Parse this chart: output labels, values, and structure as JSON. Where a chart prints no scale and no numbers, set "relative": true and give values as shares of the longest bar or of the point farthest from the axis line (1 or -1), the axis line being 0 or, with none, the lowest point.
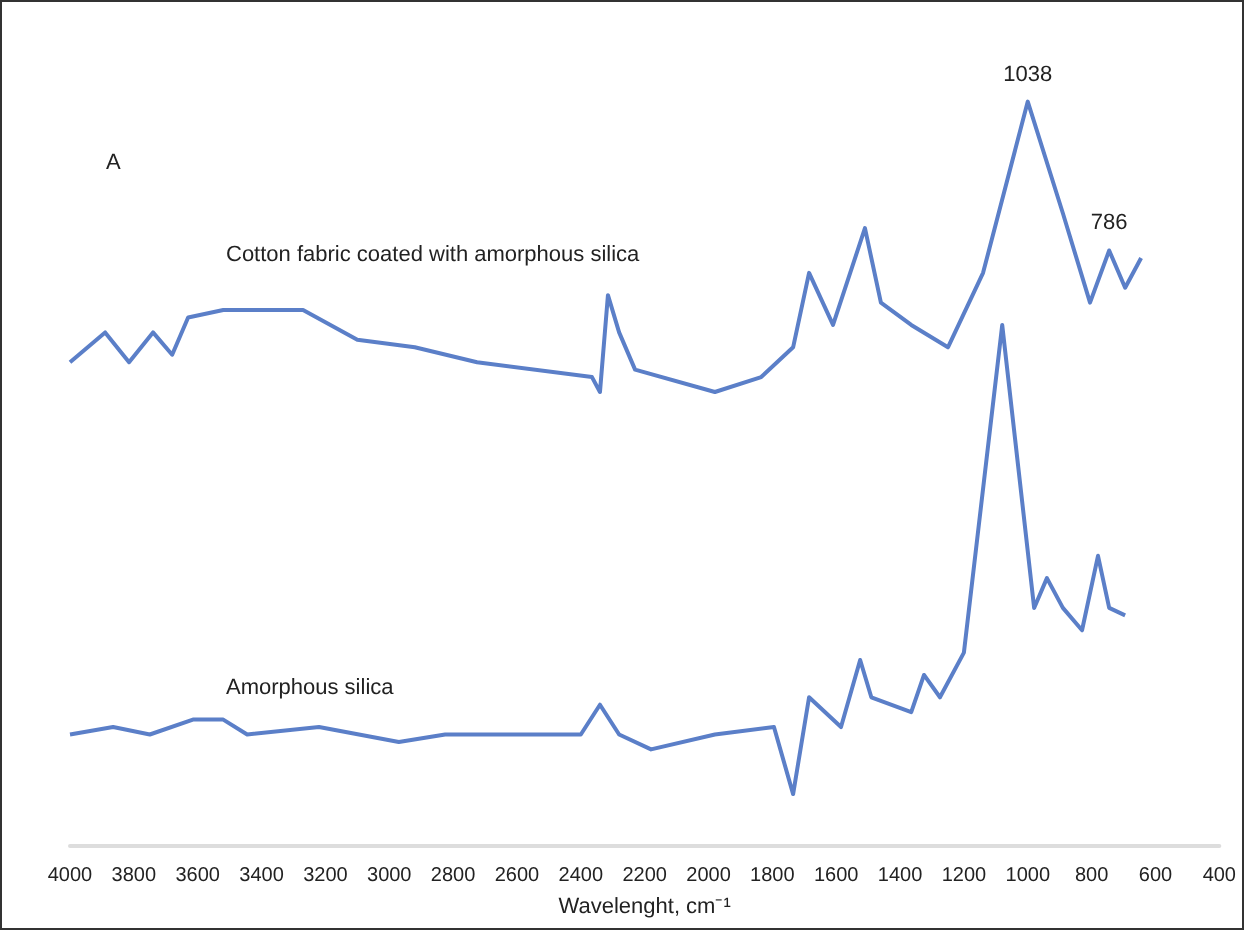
{
  "chart_data": {
    "type": "line",
    "relative": true,
    "xlabel": "Wavelenght, cm⁻¹",
    "xlim": [
      4000,
      400
    ],
    "xticks": [
      4000,
      3800,
      3600,
      3400,
      3200,
      3000,
      2800,
      2600,
      2400,
      2200,
      2000,
      1800,
      1600,
      1400,
      1200,
      1000,
      800,
      600,
      400
    ],
    "grid": false,
    "legend": false,
    "marker": "none",
    "line_style": "solid",
    "annotations": [
      "A",
      {
        "text": "1038",
        "x": 1000,
        "y": 1.0
      },
      {
        "text": "786",
        "x": 745,
        "y": 0.8
      }
    ],
    "series": [
      {
        "name": "Cotton fabric coated with amorphous silica",
        "color": "#5b7fc8",
        "x": [
          4000,
          3890,
          3815,
          3740,
          3680,
          3630,
          3520,
          3270,
          3100,
          2920,
          2725,
          2365,
          2340,
          2315,
          2280,
          2230,
          1980,
          1835,
          1735,
          1685,
          1610,
          1510,
          1460,
          1365,
          1250,
          1140,
          1000,
          890,
          805,
          745,
          695,
          645
        ],
        "values": [
          0.65,
          0.69,
          0.65,
          0.69,
          0.66,
          0.71,
          0.72,
          0.72,
          0.68,
          0.67,
          0.65,
          0.63,
          0.61,
          0.74,
          0.69,
          0.64,
          0.61,
          0.63,
          0.67,
          0.77,
          0.7,
          0.83,
          0.73,
          0.7,
          0.67,
          0.77,
          1.0,
          0.85,
          0.73,
          0.8,
          0.75,
          0.79
        ]
      },
      {
        "name": "Amorphous silica",
        "color": "#5b7fc8",
        "x": [
          4000,
          3865,
          3750,
          3615,
          3520,
          3445,
          3220,
          2970,
          2825,
          2400,
          2340,
          2280,
          2180,
          1980,
          1795,
          1735,
          1685,
          1585,
          1525,
          1490,
          1365,
          1325,
          1275,
          1200,
          1140,
          1080,
          1030,
          980,
          940,
          890,
          830,
          780,
          745,
          695
        ],
        "values": [
          0.15,
          0.16,
          0.15,
          0.17,
          0.17,
          0.15,
          0.16,
          0.14,
          0.15,
          0.15,
          0.19,
          0.15,
          0.13,
          0.15,
          0.16,
          0.07,
          0.2,
          0.16,
          0.25,
          0.2,
          0.18,
          0.23,
          0.2,
          0.26,
          0.48,
          0.7,
          0.51,
          0.32,
          0.36,
          0.32,
          0.29,
          0.39,
          0.32,
          0.31
        ]
      }
    ]
  }
}
